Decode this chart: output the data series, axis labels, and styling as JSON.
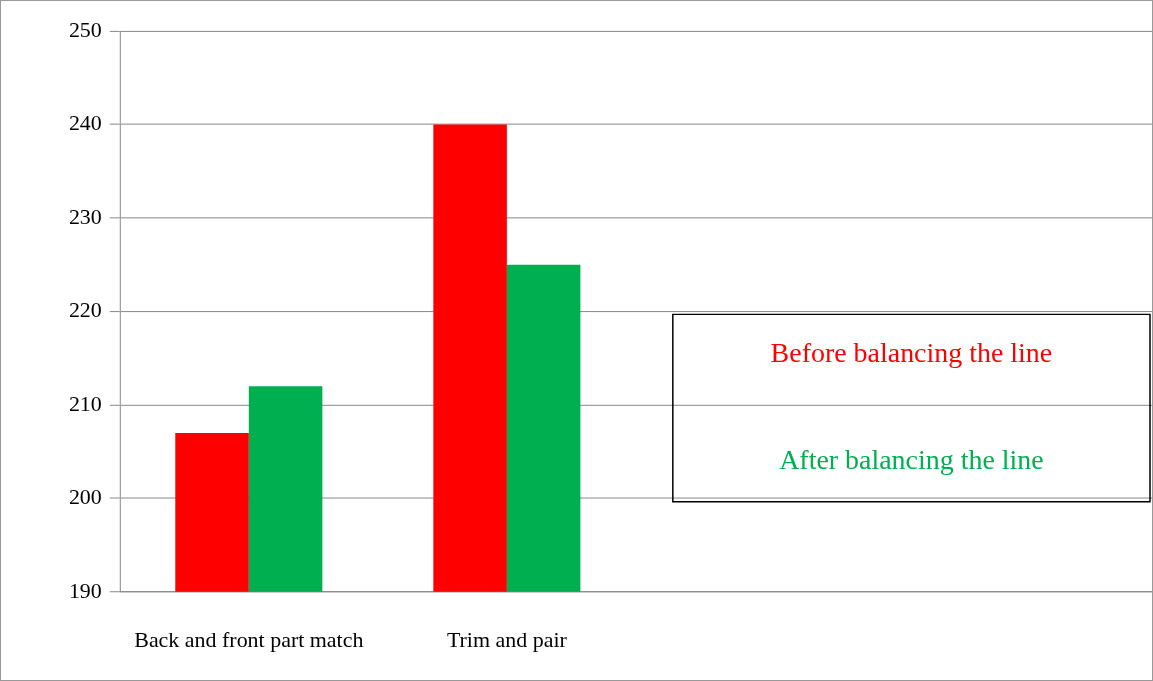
{
  "chart_data": {
    "type": "bar",
    "categories": [
      "Back and front part match",
      "Trim and pair",
      null,
      null
    ],
    "series": [
      {
        "name": "Before balancing the line",
        "color": "#ff0000",
        "values": [
          207,
          240,
          null,
          null
        ]
      },
      {
        "name": "After balancing the line",
        "color": "#00b050",
        "values": [
          212,
          225,
          null,
          null
        ]
      }
    ],
    "ylim": [
      190,
      250
    ],
    "yticks": [
      190,
      200,
      210,
      220,
      230,
      240,
      250
    ],
    "grid": "y",
    "legend": "right"
  }
}
